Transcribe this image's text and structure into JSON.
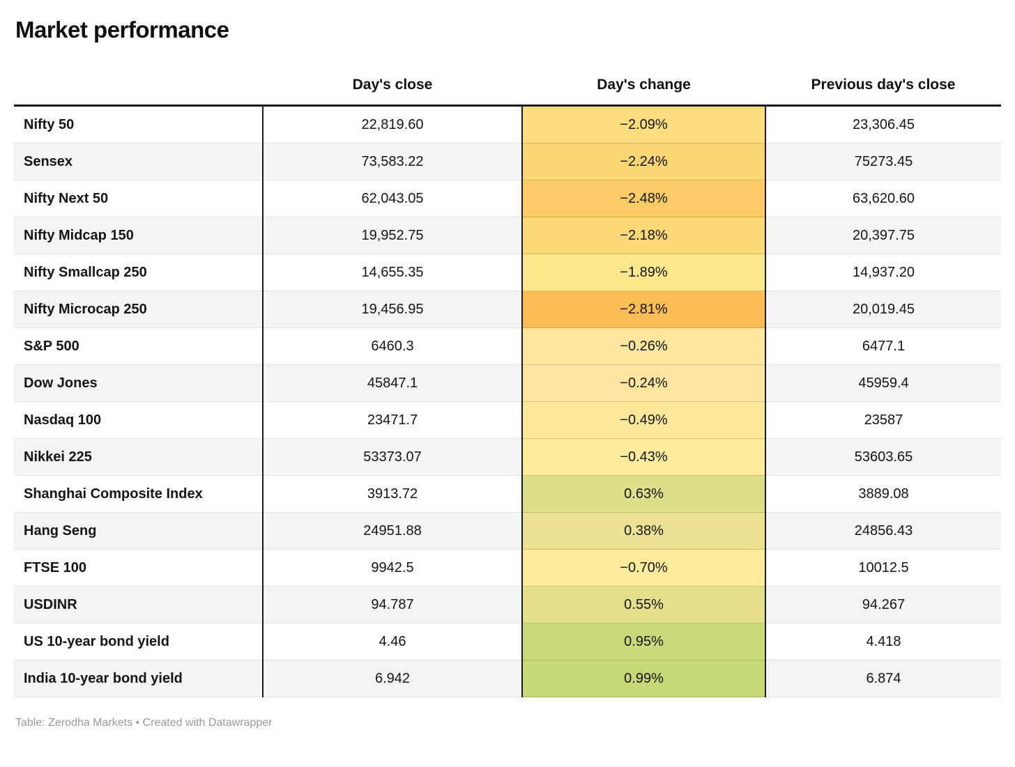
{
  "title": "Market performance",
  "table": {
    "columns": [
      "",
      "Day's close",
      "Day's change",
      "Previous day's close"
    ],
    "rows": [
      {
        "label": "Nifty 50",
        "close": "22,819.60",
        "change": "−2.09%",
        "prev": "23,306.45",
        "change_bg": "#fbdc7e"
      },
      {
        "label": "Sensex",
        "close": "73,583.22",
        "change": "−2.24%",
        "prev": "75273.45",
        "change_bg": "#fad573"
      },
      {
        "label": "Nifty Next 50",
        "close": "62,043.05",
        "change": "−2.48%",
        "prev": "63,620.60",
        "change_bg": "#fbcb66"
      },
      {
        "label": "Nifty Midcap 150",
        "close": "19,952.75",
        "change": "−2.18%",
        "prev": "20,397.75",
        "change_bg": "#fbd877"
      },
      {
        "label": "Nifty Smallcap 250",
        "close": "14,655.35",
        "change": "−1.89%",
        "prev": "14,937.20",
        "change_bg": "#fde78d"
      },
      {
        "label": "Nifty Microcap 250",
        "close": "19,456.95",
        "change": "−2.81%",
        "prev": "20,019.45",
        "change_bg": "#fdbc55"
      },
      {
        "label": "S&P 500",
        "close": "6460.3",
        "change": "−0.26%",
        "prev": "6477.1",
        "change_bg": "#fee69e"
      },
      {
        "label": "Dow Jones",
        "close": "45847.1",
        "change": "−0.24%",
        "prev": "45959.4",
        "change_bg": "#fde59f"
      },
      {
        "label": "Nasdaq 100",
        "close": "23471.7",
        "change": "−0.49%",
        "prev": "23587",
        "change_bg": "#fee89c"
      },
      {
        "label": "Nikkei 225",
        "close": "53373.07",
        "change": "−0.43%",
        "prev": "53603.65",
        "change_bg": "#fee99d"
      },
      {
        "label": "Shanghai Composite Index",
        "close": "3913.72",
        "change": "0.63%",
        "prev": "3889.08",
        "change_bg": "#dcde8a"
      },
      {
        "label": "Hang Seng",
        "close": "24951.88",
        "change": "0.38%",
        "prev": "24856.43",
        "change_bg": "#ebe294"
      },
      {
        "label": "FTSE 100",
        "close": "9942.5",
        "change": "−0.70%",
        "prev": "10012.5",
        "change_bg": "#feec9c"
      },
      {
        "label": "USDINR",
        "close": "94.787",
        "change": "0.55%",
        "prev": "94.267",
        "change_bg": "#e3df8c"
      },
      {
        "label": "US 10-year bond yield",
        "close": "4.46",
        "change": "0.95%",
        "prev": "4.418",
        "change_bg": "#c9da7d"
      },
      {
        "label": "India 10-year bond yield",
        "close": "6.942",
        "change": "0.99%",
        "prev": "6.874",
        "change_bg": "#c6d977"
      }
    ]
  },
  "footer": "Table: Zerodha Markets • Created with Datawrapper",
  "colors": {
    "border_dark": "#1a1a1a",
    "row_stripe": "#f4f4f4",
    "row_separator": "#e3e3e3",
    "footer_text": "#999999",
    "negative_extreme_bg": "#fdbc55",
    "near_zero_bg": "#fee99d",
    "positive_extreme_bg": "#c6d977"
  },
  "chart_data": {
    "type": "table",
    "title": "Market performance",
    "columns": [
      "Day's close",
      "Day's change",
      "Previous day's close"
    ],
    "rows": [
      {
        "name": "Nifty 50",
        "days_close": 22819.6,
        "days_change_pct": -2.09,
        "previous_days_close": 23306.45
      },
      {
        "name": "Sensex",
        "days_close": 73583.22,
        "days_change_pct": -2.24,
        "previous_days_close": 75273.45
      },
      {
        "name": "Nifty Next 50",
        "days_close": 62043.05,
        "days_change_pct": -2.48,
        "previous_days_close": 63620.6
      },
      {
        "name": "Nifty Midcap 150",
        "days_close": 19952.75,
        "days_change_pct": -2.18,
        "previous_days_close": 20397.75
      },
      {
        "name": "Nifty Smallcap 250",
        "days_close": 14655.35,
        "days_change_pct": -1.89,
        "previous_days_close": 14937.2
      },
      {
        "name": "Nifty Microcap 250",
        "days_close": 19456.95,
        "days_change_pct": -2.81,
        "previous_days_close": 20019.45
      },
      {
        "name": "S&P 500",
        "days_close": 6460.3,
        "days_change_pct": -0.26,
        "previous_days_close": 6477.1
      },
      {
        "name": "Dow Jones",
        "days_close": 45847.1,
        "days_change_pct": -0.24,
        "previous_days_close": 45959.4
      },
      {
        "name": "Nasdaq 100",
        "days_close": 23471.7,
        "days_change_pct": -0.49,
        "previous_days_close": 23587
      },
      {
        "name": "Nikkei 225",
        "days_close": 53373.07,
        "days_change_pct": -0.43,
        "previous_days_close": 53603.65
      },
      {
        "name": "Shanghai Composite Index",
        "days_close": 3913.72,
        "days_change_pct": 0.63,
        "previous_days_close": 3889.08
      },
      {
        "name": "Hang Seng",
        "days_close": 24951.88,
        "days_change_pct": 0.38,
        "previous_days_close": 24856.43
      },
      {
        "name": "FTSE 100",
        "days_close": 9942.5,
        "days_change_pct": -0.7,
        "previous_days_close": 10012.5
      },
      {
        "name": "USDINR",
        "days_close": 94.787,
        "days_change_pct": 0.55,
        "previous_days_close": 94.267
      },
      {
        "name": "US 10-year bond yield",
        "days_close": 4.46,
        "days_change_pct": 0.95,
        "previous_days_close": 4.418
      },
      {
        "name": "India 10-year bond yield",
        "days_close": 6.942,
        "days_change_pct": 0.99,
        "previous_days_close": 6.874
      }
    ],
    "color_coding": "Day's change column shaded on diverging scale: orange = large negative, pale yellow = near zero, green = positive"
  }
}
